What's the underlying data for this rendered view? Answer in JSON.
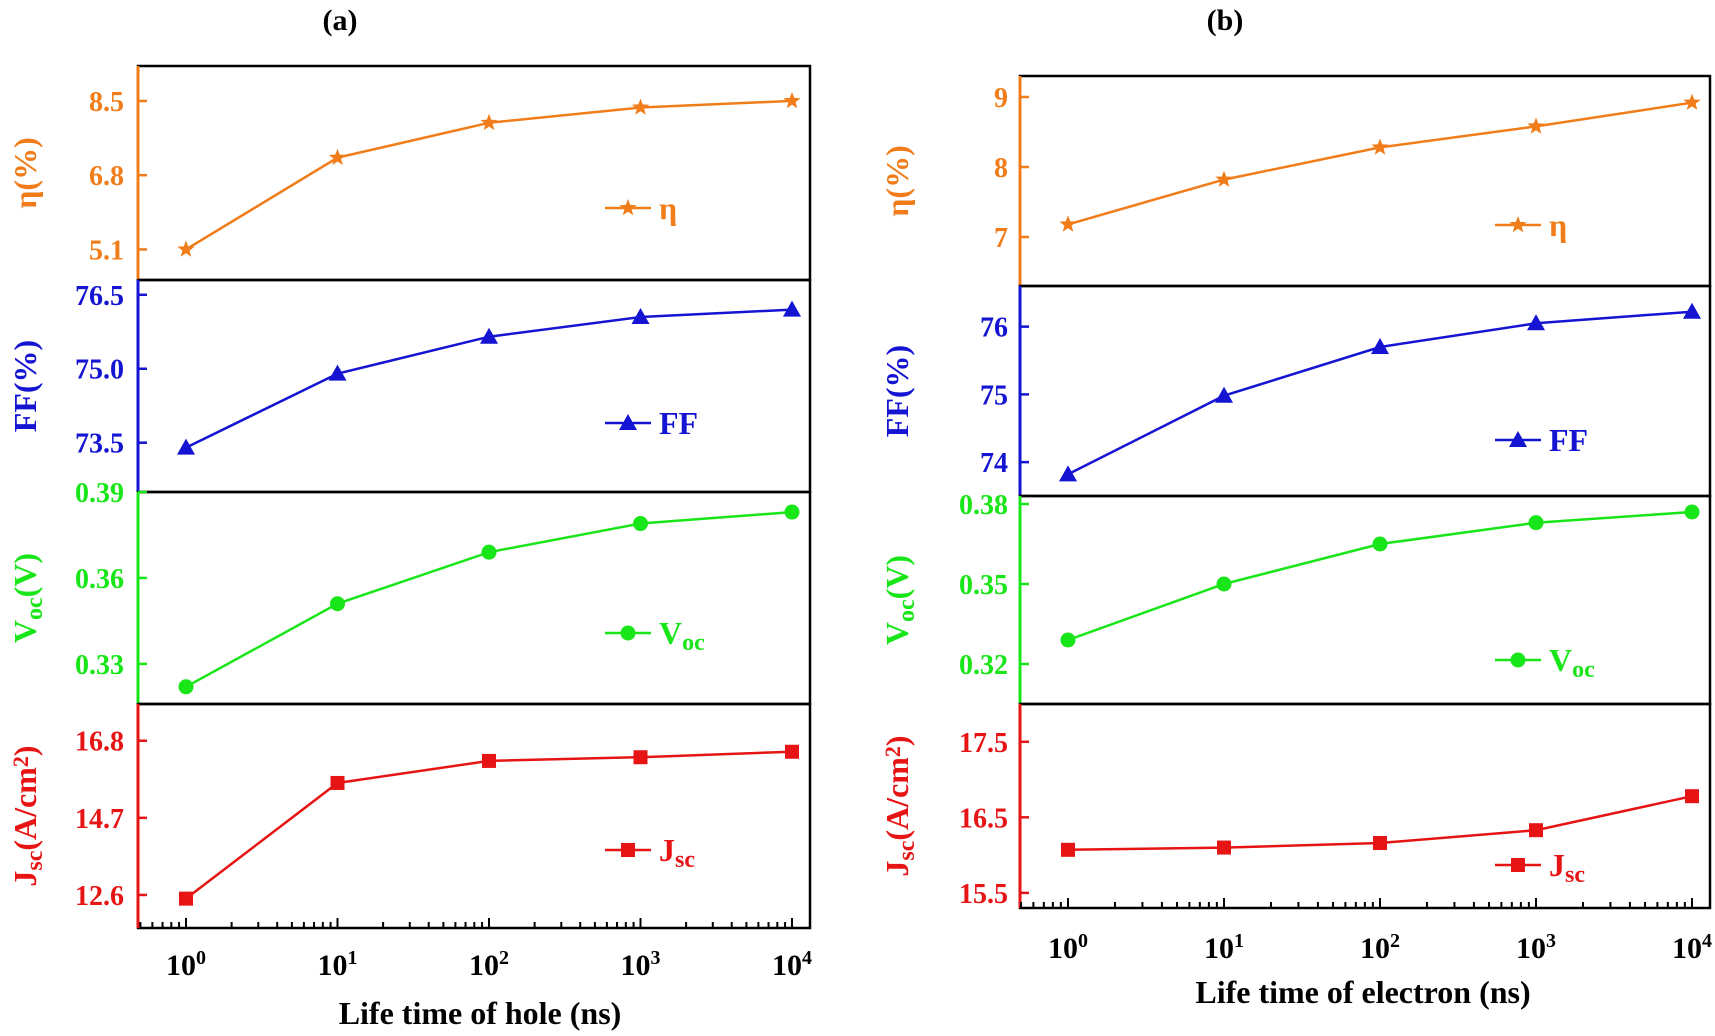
{
  "chart_data": [
    {
      "type": "line",
      "panel_label": "(a)",
      "xlabel": "Life time of hole (ns)",
      "x": [
        1,
        10,
        100,
        1000,
        10000
      ],
      "xscale": "log",
      "xtick_labels": [
        {
          "base": "10",
          "exp": "0"
        },
        {
          "base": "10",
          "exp": "1"
        },
        {
          "base": "10",
          "exp": "2"
        },
        {
          "base": "10",
          "exp": "3"
        },
        {
          "base": "10",
          "exp": "4"
        }
      ],
      "subplots": [
        {
          "name": "eta",
          "ylabel": "η(%)",
          "color": "#f07d1a",
          "marker": "star",
          "legend": {
            "text": "η",
            "sub": ""
          },
          "ylim": [
            4.4,
            9.3
          ],
          "yticks": [
            "5.1",
            "6.8",
            "8.5"
          ],
          "values": [
            5.1,
            7.2,
            8.0,
            8.35,
            8.5
          ]
        },
        {
          "name": "ff",
          "ylabel": "FF(%)",
          "color": "#1414d2",
          "marker": "triangle",
          "legend": {
            "text": "FF",
            "sub": ""
          },
          "ylim": [
            72.5,
            76.8
          ],
          "yticks": [
            "73.5",
            "75.0",
            "76.5"
          ],
          "values": [
            73.4,
            74.9,
            75.65,
            76.05,
            76.2
          ]
        },
        {
          "name": "voc",
          "ylabel": "Voc(V)",
          "color": "#19e619",
          "marker": "circle",
          "legend": {
            "text": "V",
            "sub": "oc"
          },
          "ylim": [
            0.316,
            0.39
          ],
          "yticks": [
            "0.33",
            "0.36",
            "0.39"
          ],
          "values": [
            0.322,
            0.351,
            0.369,
            0.379,
            0.383
          ]
        },
        {
          "name": "jsc",
          "ylabel": "Jsc(A/cm2)",
          "color": "#e61414",
          "marker": "square",
          "legend": {
            "text": "J",
            "sub": "sc"
          },
          "ylim": [
            11.7,
            17.8
          ],
          "yticks": [
            "12.6",
            "14.7",
            "16.8"
          ],
          "values": [
            12.5,
            15.65,
            16.25,
            16.35,
            16.5
          ]
        }
      ]
    },
    {
      "type": "line",
      "panel_label": "(b)",
      "xlabel": "Life time of electron (ns)",
      "x": [
        1,
        10,
        100,
        1000,
        10000
      ],
      "xscale": "log",
      "xtick_labels": [
        {
          "base": "10",
          "exp": "0"
        },
        {
          "base": "10",
          "exp": "1"
        },
        {
          "base": "10",
          "exp": "2"
        },
        {
          "base": "10",
          "exp": "3"
        },
        {
          "base": "10",
          "exp": "4"
        }
      ],
      "subplots": [
        {
          "name": "eta",
          "ylabel": "η(%)",
          "color": "#f07d1a",
          "marker": "star",
          "legend": {
            "text": "η",
            "sub": ""
          },
          "ylim": [
            6.3,
            9.3
          ],
          "yticks": [
            "7",
            "8",
            "9"
          ],
          "values": [
            7.18,
            7.82,
            8.28,
            8.58,
            8.92
          ]
        },
        {
          "name": "ff",
          "ylabel": "FF(%)",
          "color": "#1414d2",
          "marker": "triangle",
          "legend": {
            "text": "FF",
            "sub": ""
          },
          "ylim": [
            73.5,
            76.6
          ],
          "yticks": [
            "74",
            "75",
            "76"
          ],
          "values": [
            73.82,
            74.98,
            75.7,
            76.05,
            76.22
          ]
        },
        {
          "name": "voc",
          "ylabel": "Voc(V)",
          "color": "#19e619",
          "marker": "circle",
          "legend": {
            "text": "V",
            "sub": "oc"
          },
          "ylim": [
            0.305,
            0.383
          ],
          "yticks": [
            "0.32",
            "0.35",
            "0.38"
          ],
          "values": [
            0.329,
            0.35,
            0.365,
            0.373,
            0.377
          ]
        },
        {
          "name": "jsc",
          "ylabel": "Jsc(A/cm2)",
          "color": "#e61414",
          "marker": "square",
          "legend": {
            "text": "J",
            "sub": "sc"
          },
          "ylim": [
            15.3,
            18.0
          ],
          "yticks": [
            "15.5",
            "16.5",
            "17.5"
          ],
          "values": [
            16.07,
            16.1,
            16.16,
            16.33,
            16.78
          ]
        }
      ]
    }
  ]
}
